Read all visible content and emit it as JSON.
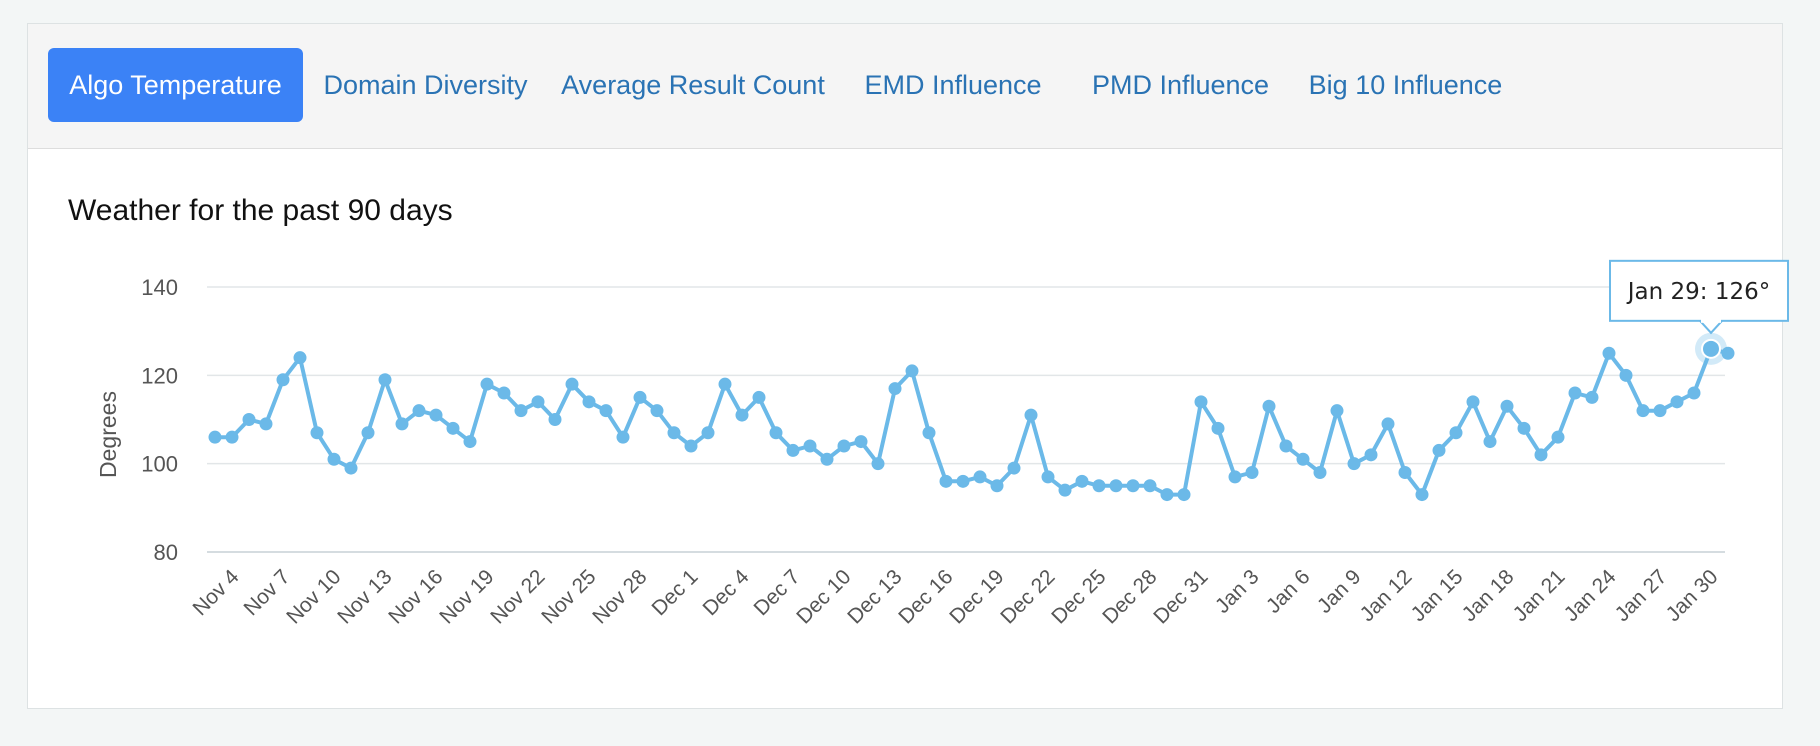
{
  "tabs": [
    {
      "label": "Algo Temperature",
      "active": true
    },
    {
      "label": "Domain Diversity",
      "active": false
    },
    {
      "label": "Average Result Count",
      "active": false
    },
    {
      "label": "EMD Influence",
      "active": false
    },
    {
      "label": "PMD Influence",
      "active": false
    },
    {
      "label": "Big 10 Influence",
      "active": false
    }
  ],
  "colors": {
    "accent": "#3b82f6",
    "tab_text": "#2a73b4",
    "series": "#6bb9e8",
    "grid": "#e2e6e8"
  },
  "chart_data": {
    "type": "line",
    "title": "Weather for the past 90 days",
    "ylabel": "Degrees",
    "xlabel": "",
    "ylim": [
      80,
      140
    ],
    "yticks": [
      80,
      100,
      120,
      140
    ],
    "grid": true,
    "x_tick_labels": [
      "Nov 4",
      "Nov 7",
      "Nov 10",
      "Nov 13",
      "Nov 16",
      "Nov 19",
      "Nov 22",
      "Nov 25",
      "Nov 28",
      "Dec 1",
      "Dec 4",
      "Dec 7",
      "Dec 10",
      "Dec 13",
      "Dec 16",
      "Dec 19",
      "Dec 22",
      "Dec 25",
      "Dec 28",
      "Dec 31",
      "Jan 3",
      "Jan 6",
      "Jan 9",
      "Jan 12",
      "Jan 15",
      "Jan 18",
      "Jan 21",
      "Jan 24",
      "Jan 27",
      "Jan 30"
    ],
    "x_start": "Nov 3",
    "x_end": "Jan 30",
    "values": [
      106,
      106,
      110,
      109,
      119,
      124,
      107,
      101,
      99,
      107,
      119,
      109,
      112,
      111,
      108,
      105,
      118,
      116,
      112,
      114,
      110,
      118,
      114,
      112,
      106,
      115,
      112,
      107,
      104,
      107,
      118,
      111,
      115,
      107,
      103,
      104,
      101,
      104,
      105,
      100,
      117,
      121,
      107,
      96,
      96,
      97,
      95,
      99,
      111,
      97,
      94,
      96,
      95,
      95,
      95,
      95,
      93,
      93,
      114,
      108,
      97,
      98,
      113,
      104,
      101,
      98,
      112,
      100,
      102,
      109,
      98,
      93,
      103,
      107,
      114,
      105,
      113,
      108,
      102,
      106,
      116,
      115,
      125,
      120,
      112,
      112,
      114,
      116,
      126,
      125
    ],
    "tooltip": {
      "label": "Jan 29: 126°",
      "index": 88
    }
  }
}
